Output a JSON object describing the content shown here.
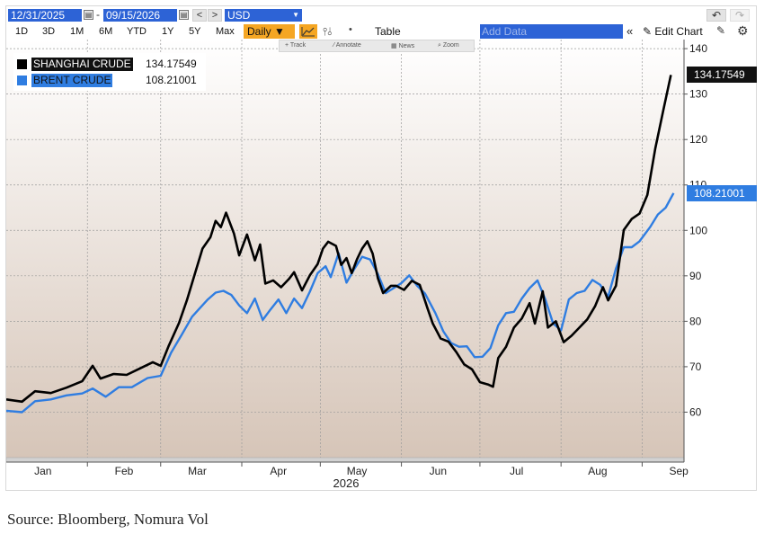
{
  "toolbar": {
    "start_date": "12/31/2025",
    "end_date": "09/15/2026",
    "currency": "USD",
    "prev_label": "<",
    "next_label": ">",
    "periods": [
      "1D",
      "3D",
      "1M",
      "6M",
      "YTD",
      "1Y",
      "5Y",
      "Max"
    ],
    "frequency": "Daily ▼",
    "table_label": "Table",
    "add_data_placeholder": "Add Data",
    "edit_chart_label": "Edit Chart",
    "tools": [
      "Track",
      "Annotate",
      "News",
      "Zoom"
    ]
  },
  "colors": {
    "shanghai": "#000000",
    "brent": "#2f7de1",
    "accent": "#f5a623",
    "selection": "#2d63d6"
  },
  "chart_data": {
    "type": "line",
    "x_axis": {
      "tick_labels": [
        "Jan",
        "Feb",
        "Mar",
        "Apr",
        "May",
        "Jun",
        "Jul",
        "Aug",
        "Sep"
      ],
      "year_label": "2026"
    },
    "y_axis": {
      "ticks": [
        60,
        70,
        80,
        90,
        100,
        110,
        120,
        130,
        140
      ],
      "range": [
        50,
        142
      ],
      "side": "right"
    },
    "grid": true,
    "legend_position": "top-left",
    "series": [
      {
        "name": "SHANGHAI CRUDE",
        "last_value": "134.17549",
        "color": "#000000",
        "points": [
          [
            "2026-01-01",
            62.8
          ],
          [
            "2026-01-07",
            62.3
          ],
          [
            "2026-01-12",
            64.6
          ],
          [
            "2026-01-18",
            64.2
          ],
          [
            "2026-01-24",
            65.4
          ],
          [
            "2026-01-30",
            66.8
          ],
          [
            "2026-02-03",
            70.2
          ],
          [
            "2026-02-06",
            67.4
          ],
          [
            "2026-02-11",
            68.4
          ],
          [
            "2026-02-16",
            68.2
          ],
          [
            "2026-02-21",
            69.6
          ],
          [
            "2026-02-26",
            71.0
          ],
          [
            "2026-03-01",
            70.2
          ],
          [
            "2026-03-04",
            74.5
          ],
          [
            "2026-03-08",
            79.6
          ],
          [
            "2026-03-11",
            84.6
          ],
          [
            "2026-03-14",
            90.3
          ],
          [
            "2026-03-17",
            96.0
          ],
          [
            "2026-03-20",
            98.5
          ],
          [
            "2026-03-22",
            102.1
          ],
          [
            "2026-03-24",
            100.7
          ],
          [
            "2026-03-26",
            103.9
          ],
          [
            "2026-03-29",
            99.3
          ],
          [
            "2026-03-31",
            94.5
          ],
          [
            "2026-04-03",
            99.1
          ],
          [
            "2026-04-06",
            93.4
          ],
          [
            "2026-04-08",
            96.9
          ],
          [
            "2026-04-10",
            88.3
          ],
          [
            "2026-04-13",
            89.0
          ],
          [
            "2026-04-16",
            87.5
          ],
          [
            "2026-04-19",
            89.3
          ],
          [
            "2026-04-21",
            90.8
          ],
          [
            "2026-04-24",
            86.8
          ],
          [
            "2026-04-27",
            90.1
          ],
          [
            "2026-04-30",
            92.6
          ],
          [
            "2026-05-02",
            96.0
          ],
          [
            "2026-05-04",
            97.5
          ],
          [
            "2026-05-07",
            96.6
          ],
          [
            "2026-05-09",
            92.4
          ],
          [
            "2026-05-11",
            93.9
          ],
          [
            "2026-05-13",
            90.6
          ],
          [
            "2026-05-15",
            93.6
          ],
          [
            "2026-05-17",
            96.0
          ],
          [
            "2026-05-19",
            97.6
          ],
          [
            "2026-05-21",
            94.9
          ],
          [
            "2026-05-23",
            89.5
          ],
          [
            "2026-05-25",
            86.2
          ],
          [
            "2026-05-28",
            87.8
          ],
          [
            "2026-05-30",
            87.8
          ],
          [
            "2026-06-02",
            86.9
          ],
          [
            "2026-06-05",
            88.9
          ],
          [
            "2026-06-08",
            88.0
          ],
          [
            "2026-06-11",
            82.8
          ],
          [
            "2026-06-13",
            79.5
          ],
          [
            "2026-06-16",
            76.2
          ],
          [
            "2026-06-19",
            75.5
          ],
          [
            "2026-06-22",
            73.2
          ],
          [
            "2026-06-25",
            70.5
          ],
          [
            "2026-06-28",
            69.4
          ],
          [
            "2026-07-01",
            66.6
          ],
          [
            "2026-07-04",
            66.1
          ],
          [
            "2026-07-06",
            65.6
          ],
          [
            "2026-07-08",
            71.9
          ],
          [
            "2026-07-11",
            74.4
          ],
          [
            "2026-07-14",
            78.6
          ],
          [
            "2026-07-17",
            80.6
          ],
          [
            "2026-07-20",
            84.0
          ],
          [
            "2026-07-22",
            79.5
          ],
          [
            "2026-07-25",
            86.6
          ],
          [
            "2026-07-27",
            78.6
          ],
          [
            "2026-07-30",
            80.0
          ],
          [
            "2026-08-02",
            75.4
          ],
          [
            "2026-08-05",
            76.8
          ],
          [
            "2026-08-08",
            78.6
          ],
          [
            "2026-08-11",
            80.4
          ],
          [
            "2026-08-14",
            83.3
          ],
          [
            "2026-08-17",
            87.5
          ],
          [
            "2026-08-19",
            84.6
          ],
          [
            "2026-08-22",
            87.8
          ],
          [
            "2026-08-25",
            100.1
          ],
          [
            "2026-08-28",
            102.5
          ],
          [
            "2026-08-31",
            103.7
          ],
          [
            "2026-09-03",
            107.8
          ],
          [
            "2026-09-06",
            118.0
          ],
          [
            "2026-09-09",
            126.2
          ],
          [
            "2026-09-12",
            134.2
          ]
        ]
      },
      {
        "name": "BRENT CRUDE",
        "last_value": "108.21001",
        "color": "#2f7de1",
        "points": [
          [
            "2026-01-01",
            60.3
          ],
          [
            "2026-01-07",
            60.0
          ],
          [
            "2026-01-12",
            62.4
          ],
          [
            "2026-01-18",
            62.8
          ],
          [
            "2026-01-24",
            63.7
          ],
          [
            "2026-01-30",
            64.1
          ],
          [
            "2026-02-03",
            65.2
          ],
          [
            "2026-02-08",
            63.4
          ],
          [
            "2026-02-13",
            65.5
          ],
          [
            "2026-02-18",
            65.5
          ],
          [
            "2026-02-24",
            67.5
          ],
          [
            "2026-03-01",
            68.0
          ],
          [
            "2026-03-05",
            73.1
          ],
          [
            "2026-03-09",
            77.0
          ],
          [
            "2026-03-13",
            81.0
          ],
          [
            "2026-03-16",
            82.9
          ],
          [
            "2026-03-19",
            84.8
          ],
          [
            "2026-03-22",
            86.3
          ],
          [
            "2026-03-25",
            86.7
          ],
          [
            "2026-03-28",
            85.8
          ],
          [
            "2026-03-31",
            83.5
          ],
          [
            "2026-04-03",
            81.8
          ],
          [
            "2026-04-06",
            85.0
          ],
          [
            "2026-04-09",
            80.3
          ],
          [
            "2026-04-12",
            82.6
          ],
          [
            "2026-04-15",
            84.8
          ],
          [
            "2026-04-18",
            81.8
          ],
          [
            "2026-04-21",
            85.0
          ],
          [
            "2026-04-24",
            82.9
          ],
          [
            "2026-04-27",
            86.5
          ],
          [
            "2026-04-30",
            90.6
          ],
          [
            "2026-05-03",
            92.1
          ],
          [
            "2026-05-05",
            89.7
          ],
          [
            "2026-05-08",
            95.0
          ],
          [
            "2026-05-11",
            88.5
          ],
          [
            "2026-05-14",
            91.5
          ],
          [
            "2026-05-17",
            94.2
          ],
          [
            "2026-05-20",
            93.6
          ],
          [
            "2026-05-23",
            90.4
          ],
          [
            "2026-05-26",
            86.2
          ],
          [
            "2026-05-29",
            87.3
          ],
          [
            "2026-06-01",
            88.4
          ],
          [
            "2026-06-04",
            90.1
          ],
          [
            "2026-06-07",
            87.8
          ],
          [
            "2026-06-10",
            86.1
          ],
          [
            "2026-06-14",
            81.8
          ],
          [
            "2026-06-17",
            77.8
          ],
          [
            "2026-06-20",
            75.2
          ],
          [
            "2026-06-23",
            74.4
          ],
          [
            "2026-06-26",
            74.5
          ],
          [
            "2026-06-29",
            72.1
          ],
          [
            "2026-07-02",
            72.2
          ],
          [
            "2026-07-05",
            74.1
          ],
          [
            "2026-07-08",
            79.1
          ],
          [
            "2026-07-11",
            81.8
          ],
          [
            "2026-07-14",
            82.1
          ],
          [
            "2026-07-17",
            85.0
          ],
          [
            "2026-07-20",
            87.3
          ],
          [
            "2026-07-23",
            89.0
          ],
          [
            "2026-07-26",
            84.8
          ],
          [
            "2026-07-29",
            79.5
          ],
          [
            "2026-08-01",
            78.0
          ],
          [
            "2026-08-04",
            84.8
          ],
          [
            "2026-08-07",
            86.2
          ],
          [
            "2026-08-10",
            86.7
          ],
          [
            "2026-08-13",
            89.1
          ],
          [
            "2026-08-16",
            88.0
          ],
          [
            "2026-08-19",
            85.4
          ],
          [
            "2026-08-22",
            91.6
          ],
          [
            "2026-08-25",
            96.3
          ],
          [
            "2026-08-28",
            96.3
          ],
          [
            "2026-08-31",
            97.6
          ],
          [
            "2026-09-04",
            100.7
          ],
          [
            "2026-09-07",
            103.5
          ],
          [
            "2026-09-10",
            105.0
          ],
          [
            "2026-09-13",
            108.2
          ]
        ]
      }
    ]
  },
  "source": "Source: Bloomberg, Nomura Vol"
}
